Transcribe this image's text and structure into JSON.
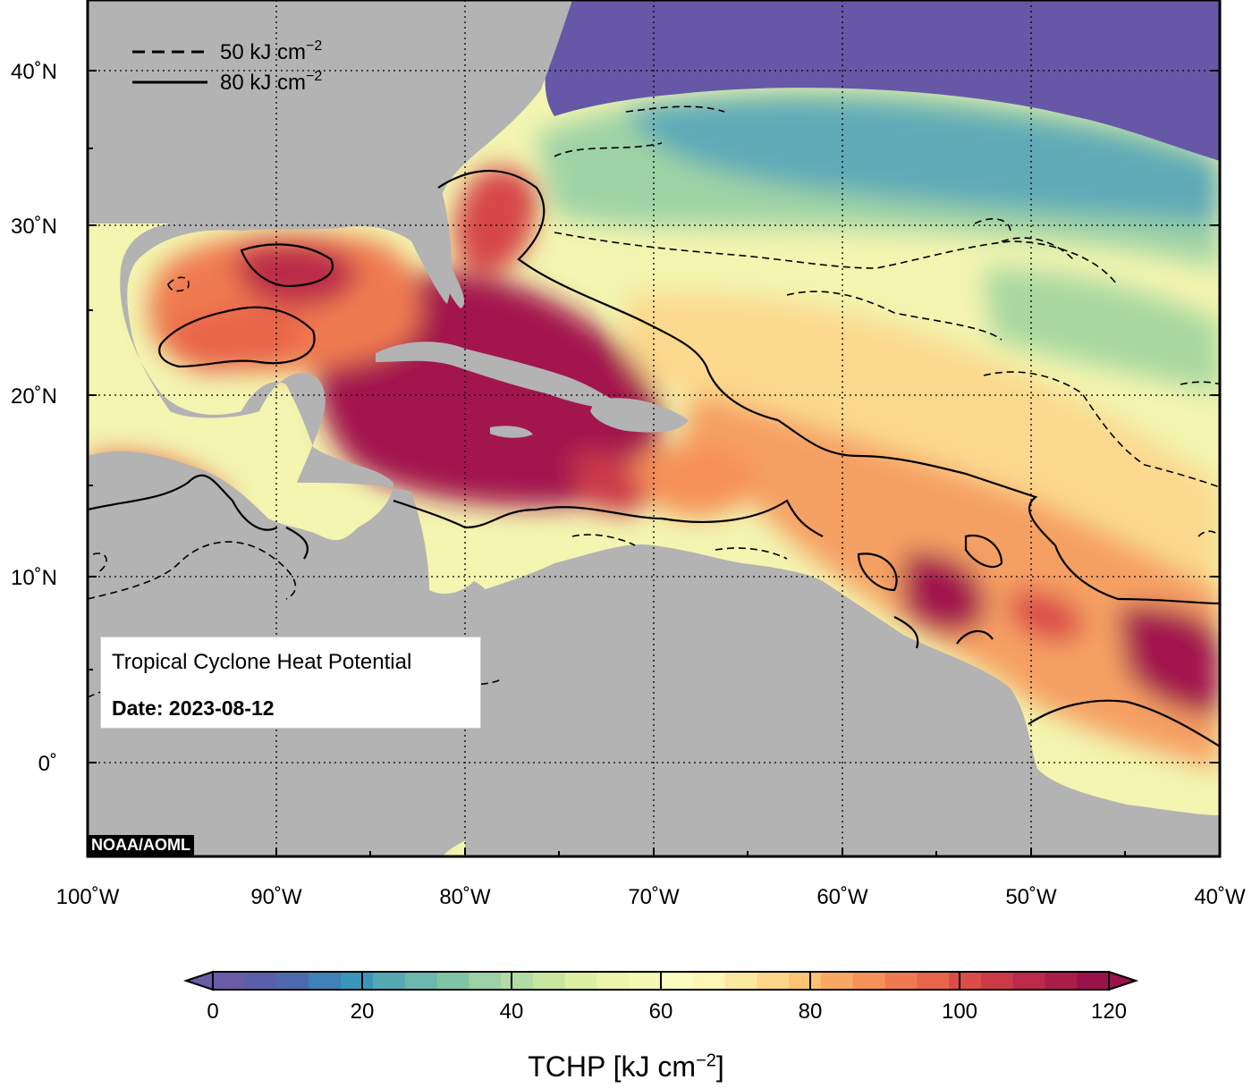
{
  "map": {
    "title": "Tropical Cyclone Heat Potential",
    "date_label": "Date: 2023-08-12",
    "credit": "NOAA/AOML",
    "lon_ticks": [
      "100˚W",
      "90˚W",
      "80˚W",
      "70˚W",
      "60˚W",
      "50˚W",
      "40˚W"
    ],
    "lat_ticks": [
      "40˚N",
      "30˚N",
      "20˚N",
      "10˚N",
      "0˚"
    ],
    "contour_legend": [
      {
        "style": "dashed",
        "label": "50 kJ cm",
        "exp": "−2"
      },
      {
        "style": "solid",
        "label": "80 kJ cm",
        "exp": "−2"
      }
    ],
    "colors": {
      "land": "#b3b3b3",
      "cold": "#6658a6",
      "hot": "#a3124d"
    }
  },
  "colorbar": {
    "ticks": [
      "0",
      "20",
      "40",
      "60",
      "80",
      "100",
      "120"
    ],
    "label_main": "TCHP [kJ cm",
    "label_exp": "−2",
    "label_end": "]",
    "colors": [
      "#6a5ba8",
      "#5a5fab",
      "#4d6ab0",
      "#3f80b8",
      "#3b95b9",
      "#55a9b3",
      "#6bb6ad",
      "#7fc4a5",
      "#9bd1a4",
      "#b2dca3",
      "#c9e6a1",
      "#dcefa3",
      "#ecf6ab",
      "#f4f9b4",
      "#fbfcc0",
      "#fef6b4",
      "#fde8a0",
      "#fdd68a",
      "#fcc276",
      "#f9a965",
      "#f69159",
      "#f07a4f",
      "#e8654a",
      "#dc4d48",
      "#cc3a49",
      "#bb2a4a",
      "#aa1d4b",
      "#9a124b"
    ]
  }
}
